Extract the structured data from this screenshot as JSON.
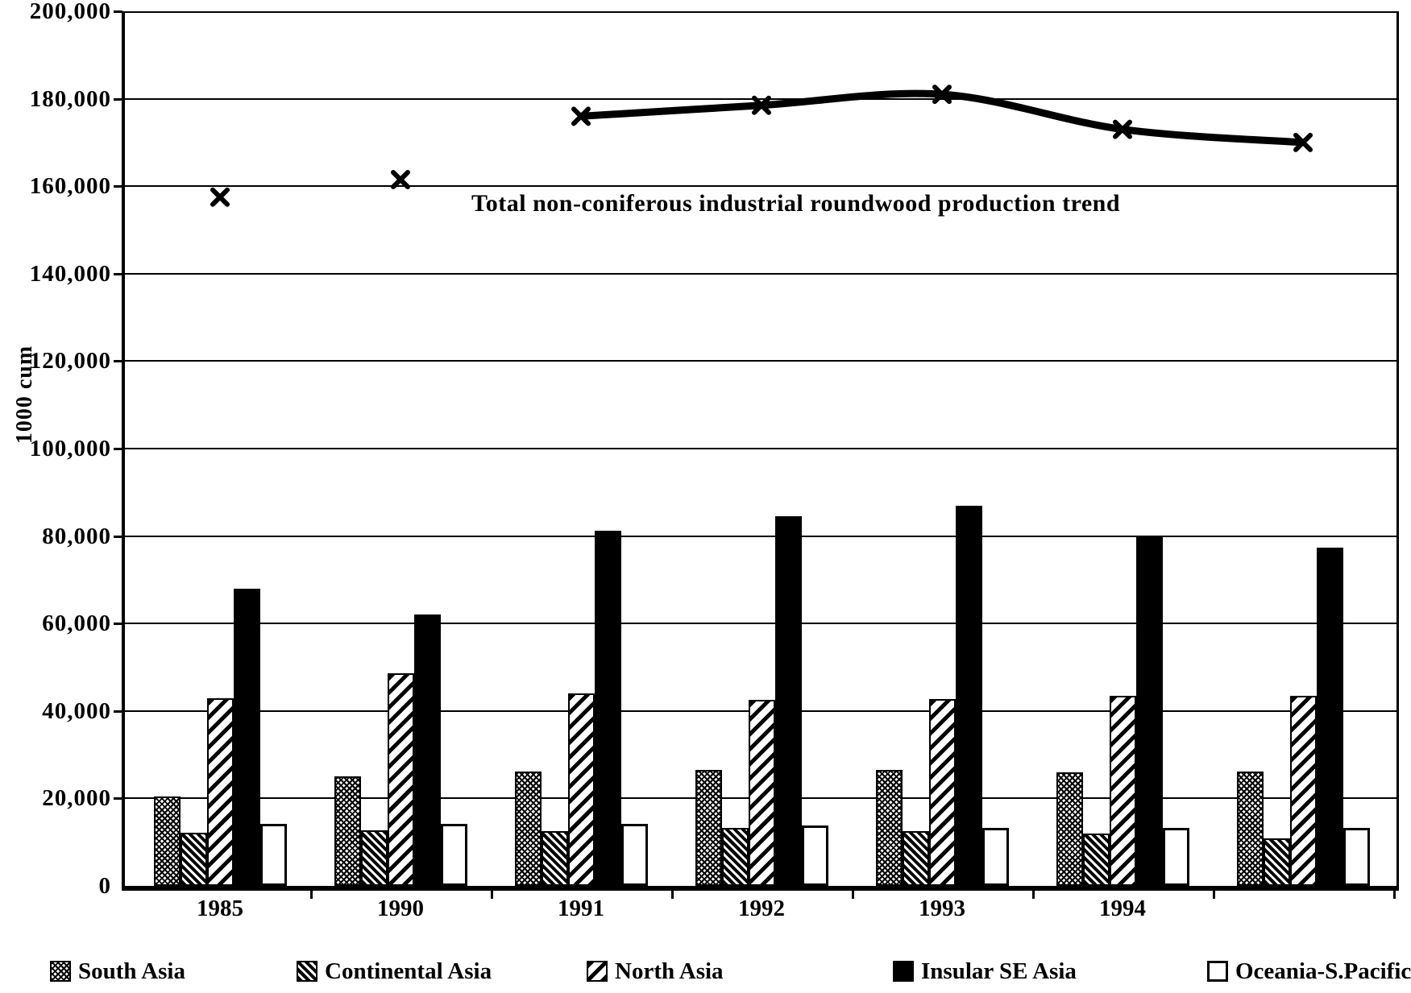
{
  "chart_data": {
    "type": "bar+line",
    "line_title": "Total non-coniferous industrial roundwood production trend",
    "ylabel": "1000 cum",
    "ylim": [
      0,
      200000
    ],
    "ytick_step": 20000,
    "ytick_labels": [
      "0",
      "20,000",
      "40,000",
      "60,000",
      "80,000",
      "100,000",
      "120,000",
      "140,000",
      "160,000",
      "180,000",
      "200,000"
    ],
    "categories": [
      "1985",
      "1990",
      "1991",
      "1992",
      "1993",
      "1994",
      ""
    ],
    "series": [
      {
        "name": "South Asia",
        "pattern": "checker",
        "values": [
          20500,
          25000,
          26200,
          26500,
          26500,
          26000,
          26100
        ]
      },
      {
        "name": "Continental Asia",
        "pattern": "backslash",
        "values": [
          12100,
          12700,
          12500,
          13200,
          12600,
          11900,
          10800
        ]
      },
      {
        "name": "North Asia",
        "pattern": "slash",
        "values": [
          43000,
          48700,
          44000,
          42500,
          42800,
          43400,
          43500
        ]
      },
      {
        "name": "Insular SE Asia",
        "pattern": "solid",
        "values": [
          68000,
          62000,
          81200,
          84500,
          87000,
          79900,
          77400
        ]
      },
      {
        "name": "Oceania-S.Pacific",
        "pattern": "white",
        "values": [
          14200,
          14200,
          14100,
          13800,
          13200,
          13300,
          13300
        ]
      }
    ],
    "line_series": {
      "name": "Total non-coniferous industrial roundwood production trend",
      "values": [
        157500,
        161500,
        176000,
        178500,
        181000,
        173000,
        170000
      ],
      "connected_from_index": 2,
      "marker": "x"
    },
    "grid": true,
    "legend_position": "bottom",
    "colors": {
      "ink": "#000000",
      "paper": "#ffffff"
    }
  }
}
